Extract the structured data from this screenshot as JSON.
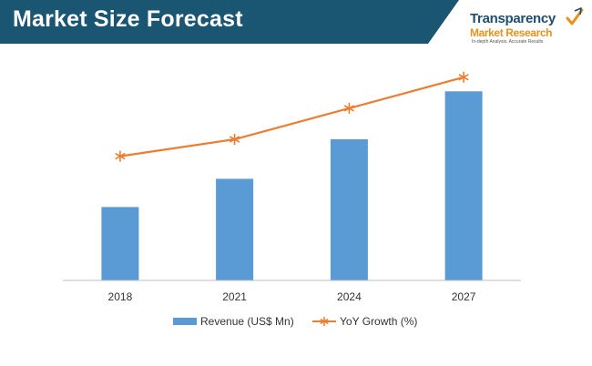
{
  "header": {
    "title": "Market Size Forecast"
  },
  "logo": {
    "line1": "Transparency",
    "line2": "Market Research",
    "line3": "In-depth Analysis. Accurate Results"
  },
  "colors": {
    "header_bg": "#1a5571",
    "bar": "#5b9bd5",
    "line": "#ed7d31",
    "axis": "#bfbfbf",
    "tick_text": "#333333",
    "logo_check": "#e8921e"
  },
  "chart_data": {
    "type": "bar",
    "categories": [
      "2018",
      "2021",
      "2024",
      "2027"
    ],
    "series": [
      {
        "name": "Revenue (US$ Mn)",
        "type": "bar",
        "values": [
          26,
          36,
          50,
          67
        ],
        "axis": "left"
      },
      {
        "name": "YoY Growth (%)",
        "type": "line",
        "marker": "asterisk",
        "values": [
          44,
          50,
          61,
          72
        ],
        "axis": "left"
      }
    ],
    "title": "",
    "xlabel": "",
    "ylabel": "",
    "ylim": [
      0,
      80
    ],
    "y_tick_labels_shown": false,
    "grid": false,
    "legend_position": "bottom"
  }
}
